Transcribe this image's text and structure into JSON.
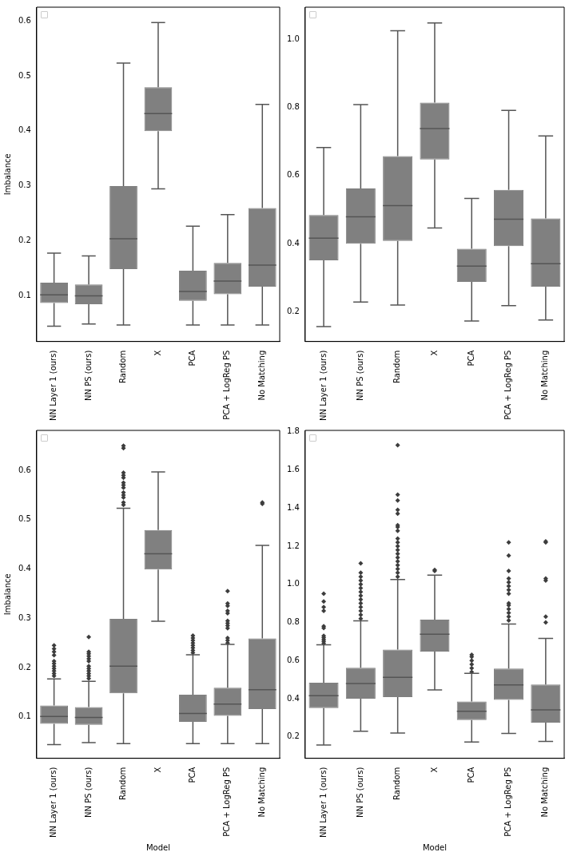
{
  "chart_data": [
    {
      "type": "box",
      "ylabel": "Imbalance",
      "categories": [
        "NN Layer 1 (ours)",
        "NN PS (ours)",
        "Random",
        "X",
        "PCA",
        "PCA + LogReg PS",
        "No Matching"
      ],
      "ylim": [
        0.016,
        0.625
      ],
      "yticks": [
        0.1,
        0.2,
        0.3,
        0.4,
        0.5,
        0.6
      ],
      "series": [
        {
          "color": "#808080",
          "boxes": [
            {
              "low": 0.044,
              "q1": 0.086,
              "median": 0.101,
              "q3": 0.123,
              "high": 0.177
            },
            {
              "low": 0.048,
              "q1": 0.084,
              "median": 0.099,
              "q3": 0.12,
              "high": 0.172
            },
            {
              "low": 0.046,
              "q1": 0.148,
              "median": 0.203,
              "q3": 0.299,
              "high": 0.523
            },
            {
              "low": 0.294,
              "q1": 0.399,
              "median": 0.431,
              "q3": 0.479,
              "high": 0.597
            },
            {
              "low": 0.046,
              "q1": 0.09,
              "median": 0.107,
              "q3": 0.145,
              "high": 0.226
            },
            {
              "low": 0.046,
              "q1": 0.102,
              "median": 0.126,
              "q3": 0.159,
              "high": 0.247
            },
            {
              "low": 0.046,
              "q1": 0.116,
              "median": 0.155,
              "q3": 0.259,
              "high": 0.448
            }
          ]
        }
      ]
    },
    {
      "type": "box",
      "categories": [
        "NN Layer 1 (ours)",
        "NN PS (ours)",
        "Random",
        "X",
        "PCA",
        "PCA + LogReg PS",
        "No Matching"
      ],
      "ylim": [
        0.113,
        1.094
      ],
      "yticks": [
        0.2,
        0.4,
        0.6,
        0.8,
        {
          "value": 1,
          "label": "1.0"
        }
      ],
      "series": [
        {
          "color": "#808080",
          "boxes": [
            {
              "low": 0.157,
              "q1": 0.351,
              "median": 0.416,
              "q3": 0.484,
              "high": 0.682
            },
            {
              "low": 0.229,
              "q1": 0.4,
              "median": 0.479,
              "q3": 0.562,
              "high": 0.808
            },
            {
              "low": 0.22,
              "q1": 0.408,
              "median": 0.512,
              "q3": 0.657,
              "high": 1.025
            },
            {
              "low": 0.446,
              "q1": 0.647,
              "median": 0.738,
              "q3": 0.814,
              "high": 1.048
            },
            {
              "low": 0.173,
              "q1": 0.288,
              "median": 0.334,
              "q3": 0.385,
              "high": 0.533
            },
            {
              "low": 0.218,
              "q1": 0.393,
              "median": 0.472,
              "q3": 0.558,
              "high": 0.791
            },
            {
              "low": 0.176,
              "q1": 0.274,
              "median": 0.341,
              "q3": 0.474,
              "high": 0.716
            }
          ]
        }
      ]
    },
    {
      "type": "box",
      "ylabel": "Imbalance",
      "xlabel": "Model",
      "marker": "diamond",
      "categories": [
        "NN Layer 1 (ours)",
        "NN PS (ours)",
        "Random",
        "X",
        "PCA",
        "PCA + LogReg PS",
        "No Matching"
      ],
      "ylim": [
        0.016,
        0.681
      ],
      "yticks": [
        0.1,
        0.2,
        0.3,
        0.4,
        0.5,
        0.6
      ],
      "series": [
        {
          "color": "#808080",
          "boxes": [
            {
              "low": 0.044,
              "q1": 0.086,
              "median": 0.101,
              "q3": 0.123,
              "high": 0.177,
              "outliers": [
                0.183,
                0.188,
                0.193,
                0.198,
                0.203,
                0.208,
                0.213,
                0.225,
                0.232,
                0.238,
                0.245
              ]
            },
            {
              "low": 0.048,
              "q1": 0.084,
              "median": 0.099,
              "q3": 0.12,
              "high": 0.172,
              "outliers": [
                0.178,
                0.183,
                0.188,
                0.193,
                0.198,
                0.203,
                0.213,
                0.218,
                0.223,
                0.228,
                0.232,
                0.262
              ]
            },
            {
              "low": 0.046,
              "q1": 0.148,
              "median": 0.203,
              "q3": 0.299,
              "high": 0.523,
              "outliers": [
                0.53,
                0.535,
                0.545,
                0.55,
                0.555,
                0.565,
                0.57,
                0.575,
                0.585,
                0.59,
                0.595,
                0.645,
                0.65
              ]
            },
            {
              "low": 0.294,
              "q1": 0.399,
              "median": 0.431,
              "q3": 0.479,
              "high": 0.597
            },
            {
              "low": 0.046,
              "q1": 0.09,
              "median": 0.107,
              "q3": 0.145,
              "high": 0.226,
              "outliers": [
                0.23,
                0.235,
                0.24,
                0.245,
                0.25,
                0.255,
                0.26,
                0.265
              ]
            },
            {
              "low": 0.046,
              "q1": 0.102,
              "median": 0.126,
              "q3": 0.159,
              "high": 0.247,
              "outliers": [
                0.25,
                0.255,
                0.26,
                0.28,
                0.285,
                0.29,
                0.295,
                0.31,
                0.315,
                0.325,
                0.33,
                0.355
              ]
            },
            {
              "low": 0.046,
              "q1": 0.116,
              "median": 0.155,
              "q3": 0.259,
              "high": 0.448,
              "outliers": [
                0.532,
                0.535
              ]
            }
          ]
        }
      ]
    },
    {
      "type": "box",
      "xlabel": "Model",
      "marker": "diamond",
      "categories": [
        "NN Layer 1 (ours)",
        "NN PS (ours)",
        "Random",
        "X",
        "PCA",
        "PCA + LogReg PS",
        "No Matching"
      ],
      "ylim": [
        0.087,
        1.807
      ],
      "yticks": [
        0.2,
        0.4,
        0.6,
        0.8,
        {
          "value": 1,
          "label": "1.0"
        },
        1.2,
        1.4,
        1.6,
        1.8
      ],
      "series": [
        {
          "color": "#808080",
          "boxes": [
            {
              "low": 0.157,
              "q1": 0.351,
              "median": 0.416,
              "q3": 0.484,
              "high": 0.682,
              "outliers": [
                0.69,
                0.7,
                0.71,
                0.72,
                0.73,
                0.77,
                0.78,
                0.86,
                0.88,
                0.91,
                0.95
              ]
            },
            {
              "low": 0.229,
              "q1": 0.4,
              "median": 0.479,
              "q3": 0.562,
              "high": 0.808,
              "outliers": [
                0.82,
                0.84,
                0.86,
                0.88,
                0.9,
                0.92,
                0.94,
                0.96,
                0.98,
                1.0,
                1.02,
                1.04,
                1.06,
                1.11
              ]
            },
            {
              "low": 0.22,
              "q1": 0.408,
              "median": 0.512,
              "q3": 0.657,
              "high": 1.025,
              "outliers": [
                1.04,
                1.06,
                1.08,
                1.1,
                1.12,
                1.14,
                1.16,
                1.18,
                1.2,
                1.22,
                1.24,
                1.28,
                1.3,
                1.31,
                1.37,
                1.39,
                1.44,
                1.47,
                1.73
              ]
            },
            {
              "low": 0.446,
              "q1": 0.647,
              "median": 0.738,
              "q3": 0.814,
              "high": 1.048,
              "outliers": [
                1.07,
                1.075
              ]
            },
            {
              "low": 0.173,
              "q1": 0.288,
              "median": 0.334,
              "q3": 0.385,
              "high": 0.533,
              "outliers": [
                0.54,
                0.56,
                0.58,
                0.6,
                0.62,
                0.63
              ]
            },
            {
              "low": 0.218,
              "q1": 0.393,
              "median": 0.472,
              "q3": 0.558,
              "high": 0.791,
              "outliers": [
                0.81,
                0.83,
                0.85,
                0.87,
                0.89,
                0.9,
                0.95,
                0.97,
                0.99,
                1.01,
                1.03,
                1.07,
                1.15,
                1.22
              ]
            },
            {
              "low": 0.176,
              "q1": 0.274,
              "median": 0.341,
              "q3": 0.474,
              "high": 0.716,
              "outliers": [
                0.8,
                0.83,
                1.02,
                1.03,
                1.22,
                1.225
              ]
            }
          ]
        }
      ]
    }
  ]
}
